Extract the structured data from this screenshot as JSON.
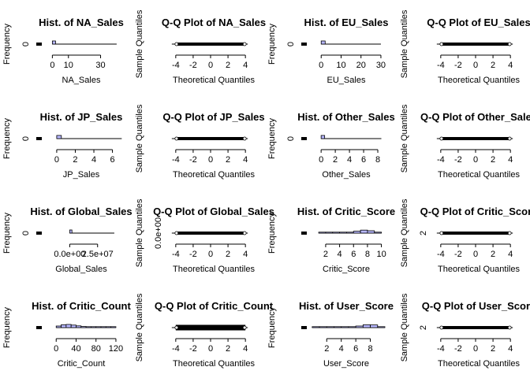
{
  "chart_data": [
    {
      "type": "histogram",
      "title": "Hist. of NA_Sales",
      "xlabel": "NA_Sales",
      "ylabel": "Frequency",
      "x_ticks": [
        "0",
        "10",
        "30"
      ],
      "x_tick_values": [
        0,
        10,
        30
      ],
      "xlim": [
        -10,
        42
      ],
      "y_ticks": [
        "0"
      ],
      "bins": [
        {
          "x0": 0,
          "x1": 2,
          "count": 1
        }
      ],
      "baseline": [
        0,
        40
      ]
    },
    {
      "type": "qqplot",
      "title": "Q-Q Plot of NA_Sales",
      "xlabel": "Theoretical Quantiles",
      "ylabel": "Sample Quantiles",
      "x_ticks": [
        "-4",
        "-2",
        "0",
        "2",
        "4"
      ],
      "x_tick_values": [
        -4,
        -2,
        0,
        2,
        4
      ],
      "xlim": [
        -4.8,
        4.8
      ],
      "y_ticks": [],
      "points_range": [
        -4,
        4
      ]
    },
    {
      "type": "histogram",
      "title": "Hist. of EU_Sales",
      "xlabel": "EU_Sales",
      "ylabel": "Frequency",
      "x_ticks": [
        "0",
        "10",
        "20",
        "30"
      ],
      "x_tick_values": [
        0,
        10,
        20,
        30
      ],
      "xlim": [
        -10,
        32
      ],
      "y_ticks": [
        "0"
      ],
      "bins": [
        {
          "x0": 0,
          "x1": 2,
          "count": 1
        }
      ],
      "baseline": [
        0,
        30
      ]
    },
    {
      "type": "qqplot",
      "title": "Q-Q Plot of EU_Sales",
      "xlabel": "Theoretical Quantiles",
      "ylabel": "Sample Quantiles",
      "x_ticks": [
        "-4",
        "-2",
        "0",
        "2",
        "4"
      ],
      "x_tick_values": [
        -4,
        -2,
        0,
        2,
        4
      ],
      "xlim": [
        -4.8,
        4.8
      ],
      "y_ticks": [],
      "points_range": [
        -4,
        4
      ]
    },
    {
      "type": "histogram",
      "title": "Hist. of JP_Sales",
      "xlabel": "JP_Sales",
      "ylabel": "Frequency",
      "x_ticks": [
        "0",
        "2",
        "4",
        "6"
      ],
      "x_tick_values": [
        0,
        2,
        4,
        6
      ],
      "xlim": [
        -2.2,
        6.8
      ],
      "y_ticks": [
        "0"
      ],
      "bins": [
        {
          "x0": 0,
          "x1": 0.5,
          "count": 1
        }
      ],
      "baseline": [
        0,
        7
      ]
    },
    {
      "type": "qqplot",
      "title": "Q-Q Plot of JP_Sales",
      "xlabel": "Theoretical Quantiles",
      "ylabel": "Sample Quantiles",
      "x_ticks": [
        "-4",
        "-2",
        "0",
        "2",
        "4"
      ],
      "x_tick_values": [
        -4,
        -2,
        0,
        2,
        4
      ],
      "xlim": [
        -4.8,
        4.8
      ],
      "y_ticks": [],
      "points_range": [
        -4,
        4
      ]
    },
    {
      "type": "histogram",
      "title": "Hist. of Other_Sales",
      "xlabel": "Other_Sales",
      "ylabel": "Frequency",
      "x_ticks": [
        "0",
        "2",
        "4",
        "6",
        "8"
      ],
      "x_tick_values": [
        0,
        2,
        4,
        6,
        8
      ],
      "xlim": [
        -2.8,
        9
      ],
      "y_ticks": [
        "0"
      ],
      "bins": [
        {
          "x0": 0,
          "x1": 0.5,
          "count": 1
        }
      ],
      "baseline": [
        0,
        8.5
      ]
    },
    {
      "type": "qqplot",
      "title": "Q-Q Plot of Other_Sales",
      "xlabel": "Theoretical Quantiles",
      "ylabel": "Sample Quantiles",
      "x_ticks": [
        "-4",
        "-2",
        "0",
        "2",
        "4"
      ],
      "x_tick_values": [
        -4,
        -2,
        0,
        2,
        4
      ],
      "xlim": [
        -4.8,
        4.8
      ],
      "y_ticks": [],
      "points_range": [
        -4,
        4
      ]
    },
    {
      "type": "histogram",
      "title": "Hist. of Global_Sales",
      "xlabel": "Global_Sales",
      "ylabel": "Frequency",
      "x_ticks": [
        "0.0e+00",
        "2.5e+07"
      ],
      "x_tick_values": [
        0,
        25000000
      ],
      "xlim": [
        -30000000,
        45000000
      ],
      "y_ticks": [
        "0"
      ],
      "bins": [
        {
          "x0": 0,
          "x1": 2000000,
          "count": 1
        }
      ],
      "baseline": [
        0,
        40000000
      ]
    },
    {
      "type": "qqplot",
      "title": "Q-Q Plot of Global_Sales",
      "xlabel": "Theoretical Quantiles",
      "ylabel": "Sample Quantiles",
      "x_ticks": [
        "-4",
        "-2",
        "0",
        "2",
        "4"
      ],
      "x_tick_values": [
        -4,
        -2,
        0,
        2,
        4
      ],
      "xlim": [
        -4.8,
        4.8
      ],
      "y_ticks": [
        "0.0e+00"
      ],
      "points_range": [
        -4,
        4
      ]
    },
    {
      "type": "histogram",
      "title": "Hist. of Critic_Score",
      "xlabel": "Critic_Score",
      "ylabel": "Frequency",
      "x_ticks": [
        "2",
        "4",
        "6",
        "8",
        "10"
      ],
      "x_tick_values": [
        2,
        4,
        6,
        8,
        10
      ],
      "xlim": [
        -1.5,
        10.5
      ],
      "y_ticks": [],
      "bins": [
        {
          "x0": 1,
          "x1": 2,
          "count": 0.02
        },
        {
          "x0": 2,
          "x1": 3,
          "count": 0.04
        },
        {
          "x0": 3,
          "x1": 4,
          "count": 0.08
        },
        {
          "x0": 4,
          "x1": 5,
          "count": 0.15
        },
        {
          "x0": 5,
          "x1": 6,
          "count": 0.3
        },
        {
          "x0": 6,
          "x1": 7,
          "count": 0.6
        },
        {
          "x0": 7,
          "x1": 8,
          "count": 0.95
        },
        {
          "x0": 8,
          "x1": 9,
          "count": 0.75
        },
        {
          "x0": 9,
          "x1": 10,
          "count": 0.2
        }
      ],
      "baseline": [
        1,
        10
      ]
    },
    {
      "type": "qqplot",
      "title": "Q-Q Plot of Critic_Score",
      "xlabel": "Theoretical Quantiles",
      "ylabel": "Sample Quantiles",
      "x_ticks": [
        "-4",
        "-2",
        "0",
        "2",
        "4"
      ],
      "x_tick_values": [
        -4,
        -2,
        0,
        2,
        4
      ],
      "xlim": [
        -4.8,
        4.8
      ],
      "y_ticks": [
        "2"
      ],
      "points_range": [
        -4,
        4
      ]
    },
    {
      "type": "histogram",
      "title": "Hist. of Critic_Count",
      "xlabel": "Critic_Count",
      "ylabel": "Frequency",
      "x_ticks": [
        "0",
        "40",
        "80",
        "120"
      ],
      "x_tick_values": [
        0,
        40,
        80,
        120
      ],
      "xlim": [
        -40,
        128
      ],
      "y_ticks": [],
      "bins": [
        {
          "x0": 0,
          "x1": 10,
          "count": 0.5
        },
        {
          "x0": 10,
          "x1": 20,
          "count": 0.9
        },
        {
          "x0": 20,
          "x1": 30,
          "count": 1
        },
        {
          "x0": 30,
          "x1": 40,
          "count": 0.8
        },
        {
          "x0": 40,
          "x1": 50,
          "count": 0.55
        },
        {
          "x0": 50,
          "x1": 60,
          "count": 0.35
        },
        {
          "x0": 60,
          "x1": 70,
          "count": 0.2
        },
        {
          "x0": 70,
          "x1": 80,
          "count": 0.12
        },
        {
          "x0": 80,
          "x1": 90,
          "count": 0.07
        },
        {
          "x0": 90,
          "x1": 100,
          "count": 0.04
        },
        {
          "x0": 100,
          "x1": 110,
          "count": 0.02
        },
        {
          "x0": 110,
          "x1": 120,
          "count": 0.01
        }
      ],
      "baseline": [
        0,
        120
      ]
    },
    {
      "type": "qqplot",
      "title": "Q-Q Plot of Critic_Count",
      "xlabel": "Theoretical Quantiles",
      "ylabel": "Sample Quantiles",
      "x_ticks": [
        "-4",
        "-2",
        "0",
        "2",
        "4"
      ],
      "x_tick_values": [
        -4,
        -2,
        0,
        2,
        4
      ],
      "xlim": [
        -4.8,
        4.8
      ],
      "y_ticks": [],
      "points_range": [
        -4,
        4
      ],
      "spread": true
    },
    {
      "type": "histogram",
      "title": "Hist. of User_Score",
      "xlabel": "User_Score",
      "ylabel": "Frequency",
      "x_ticks": [
        "2",
        "4",
        "6",
        "8"
      ],
      "x_tick_values": [
        2,
        4,
        6,
        8
      ],
      "xlim": [
        -1.5,
        10
      ],
      "y_ticks": [],
      "bins": [
        {
          "x0": 0,
          "x1": 1,
          "count": 0.01
        },
        {
          "x0": 1,
          "x1": 2,
          "count": 0.02
        },
        {
          "x0": 2,
          "x1": 3,
          "count": 0.04
        },
        {
          "x0": 3,
          "x1": 4,
          "count": 0.07
        },
        {
          "x0": 4,
          "x1": 5,
          "count": 0.12
        },
        {
          "x0": 5,
          "x1": 6,
          "count": 0.25
        },
        {
          "x0": 6,
          "x1": 7,
          "count": 0.5
        },
        {
          "x0": 7,
          "x1": 8,
          "count": 0.9
        },
        {
          "x0": 8,
          "x1": 9,
          "count": 0.85
        },
        {
          "x0": 9,
          "x1": 10,
          "count": 0.15
        }
      ],
      "baseline": [
        0,
        10
      ]
    },
    {
      "type": "qqplot",
      "title": "Q-Q Plot of User_Score",
      "xlabel": "Theoretical Quantiles",
      "ylabel": "Sample Quantiles",
      "x_ticks": [
        "-4",
        "-2",
        "0",
        "2",
        "4"
      ],
      "x_tick_values": [
        -4,
        -2,
        0,
        2,
        4
      ],
      "xlim": [
        -4.8,
        4.8
      ],
      "y_ticks": [
        "2"
      ],
      "points_range": [
        -4,
        4
      ]
    }
  ],
  "colors": {
    "bar_fill": "#b8b8ff",
    "axis": "#000000",
    "marks": "#000000"
  }
}
